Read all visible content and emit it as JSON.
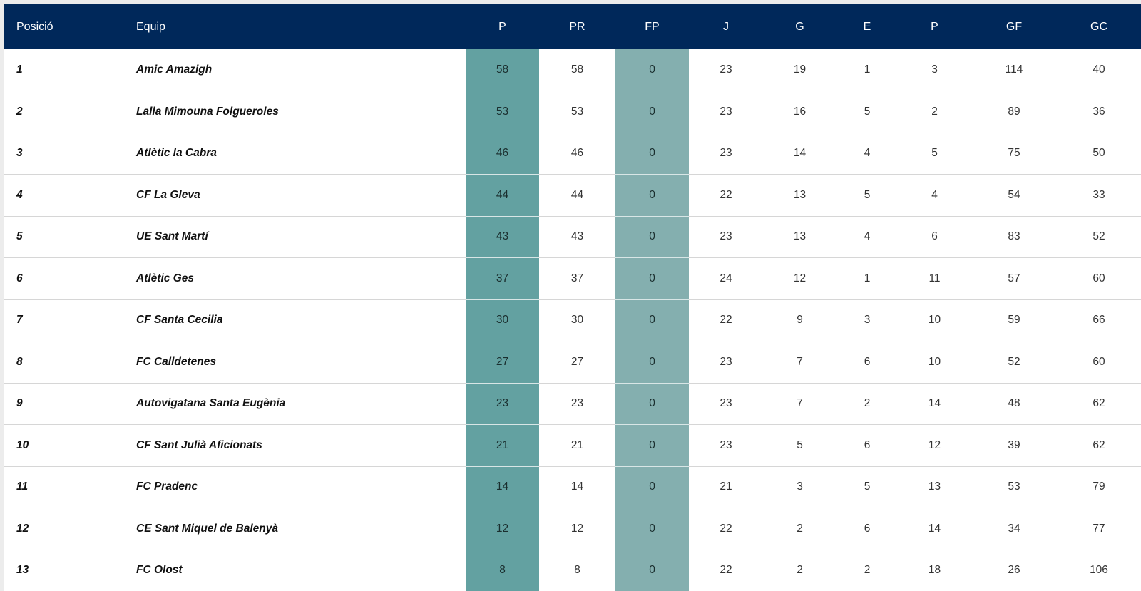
{
  "table": {
    "headers": {
      "position": "Posició",
      "team": "Equip",
      "points": "P",
      "pr": "PR",
      "fp": "FP",
      "played": "J",
      "won": "G",
      "drawn": "E",
      "lost": "P",
      "goals_for": "GF",
      "goals_against": "GC"
    },
    "rows": [
      {
        "pos": "1",
        "team": "Amic Amazigh",
        "p": "58",
        "pr": "58",
        "fp": "0",
        "j": "23",
        "g": "19",
        "e": "1",
        "l": "3",
        "gf": "114",
        "gc": "40"
      },
      {
        "pos": "2",
        "team": "Lalla Mimouna Folgueroles",
        "p": "53",
        "pr": "53",
        "fp": "0",
        "j": "23",
        "g": "16",
        "e": "5",
        "l": "2",
        "gf": "89",
        "gc": "36"
      },
      {
        "pos": "3",
        "team": "Atlètic la Cabra",
        "p": "46",
        "pr": "46",
        "fp": "0",
        "j": "23",
        "g": "14",
        "e": "4",
        "l": "5",
        "gf": "75",
        "gc": "50"
      },
      {
        "pos": "4",
        "team": "CF La Gleva",
        "p": "44",
        "pr": "44",
        "fp": "0",
        "j": "22",
        "g": "13",
        "e": "5",
        "l": "4",
        "gf": "54",
        "gc": "33"
      },
      {
        "pos": "5",
        "team": "UE Sant Martí",
        "p": "43",
        "pr": "43",
        "fp": "0",
        "j": "23",
        "g": "13",
        "e": "4",
        "l": "6",
        "gf": "83",
        "gc": "52"
      },
      {
        "pos": "6",
        "team": "Atlètic Ges",
        "p": "37",
        "pr": "37",
        "fp": "0",
        "j": "24",
        "g": "12",
        "e": "1",
        "l": "11",
        "gf": "57",
        "gc": "60"
      },
      {
        "pos": "7",
        "team": "CF Santa Cecilia",
        "p": "30",
        "pr": "30",
        "fp": "0",
        "j": "22",
        "g": "9",
        "e": "3",
        "l": "10",
        "gf": "59",
        "gc": "66"
      },
      {
        "pos": "8",
        "team": "FC Calldetenes",
        "p": "27",
        "pr": "27",
        "fp": "0",
        "j": "23",
        "g": "7",
        "e": "6",
        "l": "10",
        "gf": "52",
        "gc": "60"
      },
      {
        "pos": "9",
        "team": "Autovigatana Santa Eugènia",
        "p": "23",
        "pr": "23",
        "fp": "0",
        "j": "23",
        "g": "7",
        "e": "2",
        "l": "14",
        "gf": "48",
        "gc": "62"
      },
      {
        "pos": "10",
        "team": "CF Sant Julià Aficionats",
        "p": "21",
        "pr": "21",
        "fp": "0",
        "j": "23",
        "g": "5",
        "e": "6",
        "l": "12",
        "gf": "39",
        "gc": "62"
      },
      {
        "pos": "11",
        "team": "FC Pradenc",
        "p": "14",
        "pr": "14",
        "fp": "0",
        "j": "21",
        "g": "3",
        "e": "5",
        "l": "13",
        "gf": "53",
        "gc": "79"
      },
      {
        "pos": "12",
        "team": "CE Sant Miquel de Balenyà",
        "p": "12",
        "pr": "12",
        "fp": "0",
        "j": "22",
        "g": "2",
        "e": "6",
        "l": "14",
        "gf": "34",
        "gc": "77"
      },
      {
        "pos": "13",
        "team": "FC Olost",
        "p": "8",
        "pr": "8",
        "fp": "0",
        "j": "22",
        "g": "2",
        "e": "2",
        "l": "18",
        "gf": "26",
        "gc": "106"
      }
    ]
  },
  "colors": {
    "header_bg": "#00285a",
    "points_col": "#63a1a1",
    "fp_col": "#84afaf"
  }
}
